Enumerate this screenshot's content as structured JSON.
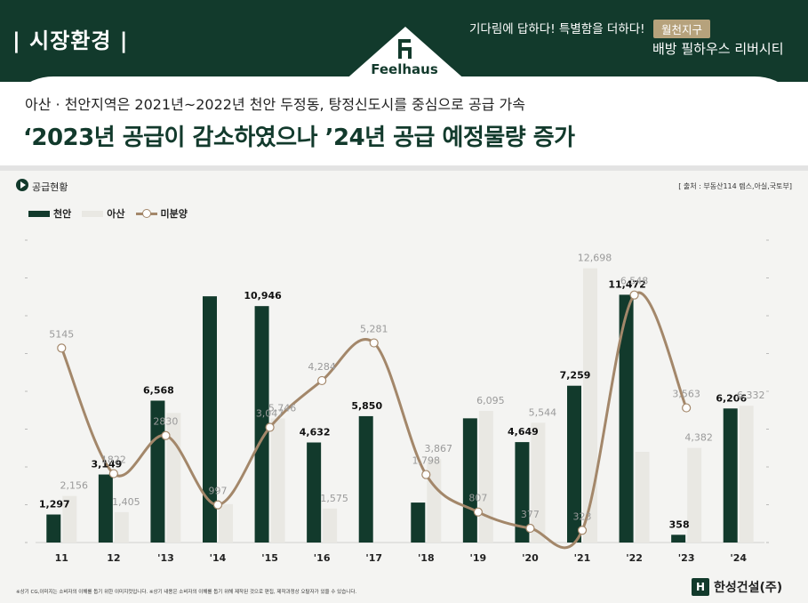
{
  "header": {
    "section_title": "| 시장환경 |",
    "tagline": "기다림에 답하다! 특별함을 더하다!",
    "badge": "월천지구",
    "project_name": "배방 필하우스 리버시티",
    "logo_text": "Feelhaus"
  },
  "headline": {
    "subtitle": "아산 · 천안지역은 2021년~2022년 천안 두정동, 탕정신도시를 중심으로 공급 가속",
    "title": "‘2023년 공급이 감소하였으나 ’24년 공급 예정물량 증가"
  },
  "section_label": "공급현황",
  "source": "[ 출처 : 부동산114 렙스,아실,국토부]",
  "footer_note": "※상기 CG,이미지는 소비자의 이해를 돕기 위한 이미지컷입니다. ※상기 내용은 소비자의 이해를 돕기 위해 제작된 것으로 편집, 제작과정상 오탈자가 있을 수 있습니다.",
  "company": {
    "icon_text": "H",
    "name": "한성건설(주)"
  },
  "colors": {
    "dark_green": "#123a2c",
    "light_gray": "#e9e8e3",
    "line": "#a3876a"
  },
  "chart_data": {
    "type": "bar",
    "categories": [
      "11",
      "12",
      "'13",
      "'14",
      "'15",
      "'16",
      "'17",
      "'18",
      "'19",
      "'20",
      "'21",
      "'22",
      "'23",
      "'24"
    ],
    "series": [
      {
        "name": "천안",
        "type": "bar",
        "values": [
          1297,
          3149,
          6568,
          11400,
          10946,
          4632,
          5850,
          1850,
          5750,
          4649,
          7259,
          11472,
          358,
          6206
        ],
        "labels": [
          "1,297",
          "3,149",
          "6,568",
          "",
          "10,946",
          "4,632",
          "5,850",
          "",
          "",
          "4,649",
          "7,259",
          "11,472",
          "358",
          "6,206"
        ]
      },
      {
        "name": "아산",
        "type": "bar",
        "values": [
          2156,
          1405,
          6000,
          1775,
          5746,
          1575,
          0,
          3867,
          6095,
          5544,
          12698,
          4200,
          4382,
          6332
        ],
        "labels": [
          "2,156",
          "1,405",
          "",
          "",
          "5,746",
          "1,575",
          "",
          "3,867",
          "6,095",
          "5,544",
          "12,698",
          "",
          "4,382",
          "6,332"
        ]
      },
      {
        "name": "미분양",
        "type": "line",
        "values": [
          5145,
          1822,
          2830,
          997,
          3047,
          4284,
          5281,
          1798,
          807,
          377,
          323,
          6548,
          3563,
          null
        ],
        "labels": [
          "5145",
          "1822",
          "2830",
          "997",
          "3,047",
          "4,284",
          "5,281",
          "1,798",
          "807",
          "377",
          "323",
          "6,548",
          "3,563",
          ""
        ]
      }
    ],
    "ylim_bars": [
      0,
      14000
    ],
    "ylim_line": [
      0,
      8000
    ],
    "legend_position": "top-left"
  }
}
